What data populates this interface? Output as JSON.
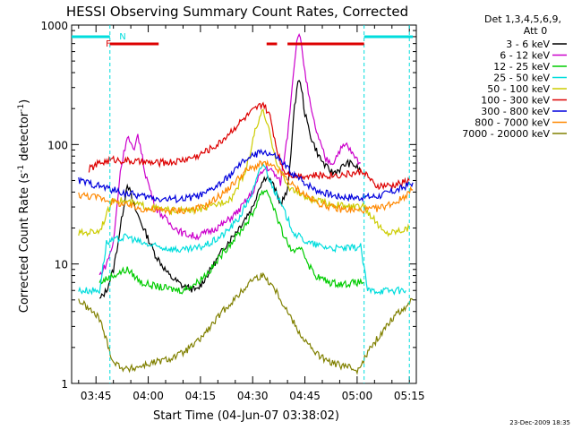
{
  "chart_data": {
    "type": "line",
    "title": "HESSI Observing Summary Count Rates, Corrected",
    "xlabel": "Start Time (04-Jun-07 03:38:02)",
    "ylabel_prefix": "Corrected Count Rate (s",
    "ylabel_sup1": "-1",
    "ylabel_mid": " detector",
    "ylabel_sup2": "-1",
    "ylabel_suffix": ")",
    "detector_line1": "Det 1,3,4,5,6,9,",
    "detector_line2": "Att 0",
    "footer_date": "23-Dec-2009 18:35",
    "xlim": [
      "03:38",
      "05:17"
    ],
    "ylim": [
      1,
      1000
    ],
    "yscale": "log",
    "x_ticks": [
      "03:45",
      "04:00",
      "04:15",
      "04:30",
      "04:45",
      "05:00",
      "05:15"
    ],
    "y_ticks": [
      {
        "value": 1,
        "label": "1"
      },
      {
        "value": 10,
        "label": "10"
      },
      {
        "value": 100,
        "label": "100"
      },
      {
        "value": 1000,
        "label": "1000"
      }
    ],
    "legend_position": "right",
    "data_gaps": [
      [
        "03:38",
        "03:49"
      ],
      [
        "05:02",
        "05:17"
      ]
    ],
    "series": [
      {
        "name": "3 - 6 keV",
        "color": "#000000",
        "points": [
          [
            "03:46",
            5
          ],
          [
            "03:48",
            6
          ],
          [
            "03:50",
            9
          ],
          [
            "03:52",
            20
          ],
          [
            "03:54",
            48
          ],
          [
            "03:56",
            30
          ],
          [
            "03:58",
            22
          ],
          [
            "04:02",
            12
          ],
          [
            "04:06",
            8
          ],
          [
            "04:10",
            6.5
          ],
          [
            "04:14",
            6
          ],
          [
            "04:18",
            9
          ],
          [
            "04:22",
            14
          ],
          [
            "04:26",
            20
          ],
          [
            "04:30",
            30
          ],
          [
            "04:32",
            45
          ],
          [
            "04:34",
            55
          ],
          [
            "04:36",
            45
          ],
          [
            "04:38",
            32
          ],
          [
            "04:40",
            40
          ],
          [
            "04:42",
            200
          ],
          [
            "04:43",
            350
          ],
          [
            "04:44",
            300
          ],
          [
            "04:45",
            180
          ],
          [
            "04:47",
            110
          ],
          [
            "04:49",
            80
          ],
          [
            "04:51",
            65
          ],
          [
            "04:53",
            58
          ],
          [
            "04:55",
            62
          ],
          [
            "04:57",
            70
          ],
          [
            "04:59",
            68
          ],
          [
            "05:01",
            60
          ]
        ]
      },
      {
        "name": "6 - 12 keV",
        "color": "#cc00cc",
        "points": [
          [
            "03:46",
            8
          ],
          [
            "03:48",
            10
          ],
          [
            "03:50",
            15
          ],
          [
            "03:52",
            60
          ],
          [
            "03:54",
            120
          ],
          [
            "03:56",
            85
          ],
          [
            "03:57",
            125
          ],
          [
            "03:59",
            60
          ],
          [
            "04:02",
            30
          ],
          [
            "04:06",
            22
          ],
          [
            "04:10",
            18
          ],
          [
            "04:14",
            17
          ],
          [
            "04:18",
            19
          ],
          [
            "04:22",
            22
          ],
          [
            "04:26",
            28
          ],
          [
            "04:30",
            40
          ],
          [
            "04:32",
            55
          ],
          [
            "04:34",
            65
          ],
          [
            "04:36",
            58
          ],
          [
            "04:38",
            48
          ],
          [
            "04:40",
            120
          ],
          [
            "04:42",
            500
          ],
          [
            "04:43",
            850
          ],
          [
            "04:44",
            700
          ],
          [
            "04:45",
            400
          ],
          [
            "04:47",
            180
          ],
          [
            "04:49",
            110
          ],
          [
            "04:51",
            75
          ],
          [
            "04:53",
            70
          ],
          [
            "04:55",
            90
          ],
          [
            "04:57",
            100
          ],
          [
            "04:59",
            80
          ],
          [
            "05:01",
            70
          ]
        ]
      },
      {
        "name": "12 - 25 keV",
        "color": "#00cc00",
        "points": [
          [
            "03:46",
            7
          ],
          [
            "03:50",
            8
          ],
          [
            "03:54",
            9
          ],
          [
            "03:58",
            7
          ],
          [
            "04:02",
            6.5
          ],
          [
            "04:06",
            6.2
          ],
          [
            "04:10",
            6
          ],
          [
            "04:14",
            7
          ],
          [
            "04:18",
            9
          ],
          [
            "04:22",
            13
          ],
          [
            "04:26",
            18
          ],
          [
            "04:30",
            26
          ],
          [
            "04:32",
            38
          ],
          [
            "04:34",
            42
          ],
          [
            "04:36",
            30
          ],
          [
            "04:38",
            20
          ],
          [
            "04:40",
            15
          ],
          [
            "04:42",
            12
          ],
          [
            "04:44",
            14
          ],
          [
            "04:46",
            10
          ],
          [
            "04:48",
            8
          ],
          [
            "04:52",
            7
          ],
          [
            "04:56",
            6.8
          ],
          [
            "05:00",
            7
          ],
          [
            "05:02",
            7
          ]
        ]
      },
      {
        "name": "25 - 50 keV",
        "color": "#00dddd",
        "points": [
          [
            "03:40",
            6
          ],
          [
            "03:46",
            6
          ],
          [
            "03:48",
            15
          ],
          [
            "03:54",
            17
          ],
          [
            "03:58",
            15
          ],
          [
            "04:02",
            14
          ],
          [
            "04:06",
            13.5
          ],
          [
            "04:10",
            13
          ],
          [
            "04:14",
            13.5
          ],
          [
            "04:18",
            15
          ],
          [
            "04:22",
            18
          ],
          [
            "04:26",
            24
          ],
          [
            "04:30",
            40
          ],
          [
            "04:32",
            60
          ],
          [
            "04:33",
            70
          ],
          [
            "04:35",
            50
          ],
          [
            "04:38",
            32
          ],
          [
            "04:40",
            24
          ],
          [
            "04:42",
            18
          ],
          [
            "04:46",
            15
          ],
          [
            "04:50",
            14
          ],
          [
            "04:54",
            13.5
          ],
          [
            "04:58",
            13.5
          ],
          [
            "05:01",
            14
          ],
          [
            "05:03",
            6
          ],
          [
            "05:14",
            6
          ]
        ]
      },
      {
        "name": "50 - 100 keV",
        "color": "#cccc00",
        "points": [
          [
            "03:40",
            18
          ],
          [
            "03:46",
            19
          ],
          [
            "03:50",
            35
          ],
          [
            "03:56",
            32
          ],
          [
            "04:00",
            30
          ],
          [
            "04:06",
            28
          ],
          [
            "04:12",
            28
          ],
          [
            "04:18",
            30
          ],
          [
            "04:24",
            36
          ],
          [
            "04:28",
            60
          ],
          [
            "04:31",
            140
          ],
          [
            "04:33",
            190
          ],
          [
            "04:35",
            120
          ],
          [
            "04:37",
            70
          ],
          [
            "04:40",
            45
          ],
          [
            "04:46",
            35
          ],
          [
            "04:52",
            32
          ],
          [
            "04:58",
            30
          ],
          [
            "05:02",
            30
          ],
          [
            "05:08",
            18
          ],
          [
            "05:15",
            20
          ]
        ]
      },
      {
        "name": "100 - 300 keV",
        "color": "#dd0000",
        "points": [
          [
            "03:43",
            62
          ],
          [
            "03:46",
            70
          ],
          [
            "03:50",
            75
          ],
          [
            "03:56",
            72
          ],
          [
            "04:02",
            70
          ],
          [
            "04:08",
            72
          ],
          [
            "04:14",
            80
          ],
          [
            "04:20",
            100
          ],
          [
            "04:26",
            150
          ],
          [
            "04:30",
            190
          ],
          [
            "04:33",
            220
          ],
          [
            "04:35",
            170
          ],
          [
            "04:37",
            90
          ],
          [
            "04:39",
            60
          ],
          [
            "04:42",
            55
          ],
          [
            "04:50",
            55
          ],
          [
            "04:56",
            56
          ],
          [
            "05:00",
            58
          ],
          [
            "05:02",
            60
          ],
          [
            "05:05",
            45
          ],
          [
            "05:10",
            45
          ],
          [
            "05:15",
            50
          ]
        ]
      },
      {
        "name": "300 - 800 keV",
        "color": "#0000dd",
        "points": [
          [
            "03:40",
            50
          ],
          [
            "03:46",
            45
          ],
          [
            "03:52",
            40
          ],
          [
            "03:58",
            37
          ],
          [
            "04:04",
            35
          ],
          [
            "04:10",
            35
          ],
          [
            "04:16",
            38
          ],
          [
            "04:22",
            50
          ],
          [
            "04:28",
            75
          ],
          [
            "04:33",
            88
          ],
          [
            "04:37",
            78
          ],
          [
            "04:42",
            55
          ],
          [
            "04:48",
            42
          ],
          [
            "04:54",
            37
          ],
          [
            "05:00",
            36
          ],
          [
            "05:06",
            37
          ],
          [
            "05:12",
            42
          ],
          [
            "05:16",
            48
          ]
        ]
      },
      {
        "name": "800 - 7000 keV",
        "color": "#ff8800",
        "points": [
          [
            "03:40",
            38
          ],
          [
            "03:46",
            36
          ],
          [
            "03:52",
            32
          ],
          [
            "03:58",
            29
          ],
          [
            "04:04",
            28
          ],
          [
            "04:10",
            28
          ],
          [
            "04:16",
            30
          ],
          [
            "04:22",
            40
          ],
          [
            "04:28",
            60
          ],
          [
            "04:33",
            70
          ],
          [
            "04:37",
            62
          ],
          [
            "04:42",
            44
          ],
          [
            "04:48",
            33
          ],
          [
            "04:54",
            29
          ],
          [
            "05:00",
            28
          ],
          [
            "05:06",
            29
          ],
          [
            "05:12",
            34
          ],
          [
            "05:16",
            42
          ]
        ]
      },
      {
        "name": "7000 - 20000 keV",
        "color": "#808000",
        "points": [
          [
            "03:40",
            5
          ],
          [
            "03:46",
            3.5
          ],
          [
            "03:50",
            1.5
          ],
          [
            "03:54",
            1.3
          ],
          [
            "03:58",
            1.4
          ],
          [
            "04:02",
            1.5
          ],
          [
            "04:06",
            1.6
          ],
          [
            "04:10",
            1.8
          ],
          [
            "04:14",
            2.2
          ],
          [
            "04:18",
            3
          ],
          [
            "04:22",
            4.2
          ],
          [
            "04:26",
            5.5
          ],
          [
            "04:30",
            7.5
          ],
          [
            "04:33",
            8
          ],
          [
            "04:36",
            6.5
          ],
          [
            "04:40",
            4
          ],
          [
            "04:44",
            2.5
          ],
          [
            "04:48",
            1.8
          ],
          [
            "04:52",
            1.5
          ],
          [
            "04:56",
            1.4
          ],
          [
            "05:00",
            1.3
          ],
          [
            "05:04",
            2
          ],
          [
            "05:10",
            3.5
          ],
          [
            "05:16",
            5
          ]
        ]
      }
    ],
    "flags": [
      {
        "label": "N",
        "color": "#00dddd",
        "segments": [
          [
            "03:38",
            "03:49"
          ],
          [
            "05:02",
            "05:16"
          ]
        ]
      },
      {
        "label": "F",
        "color": "#dd0000",
        "segments": [
          [
            "03:49",
            "04:03"
          ],
          [
            "04:34",
            "04:37"
          ],
          [
            "04:40",
            "05:02"
          ]
        ]
      }
    ],
    "night_boundaries": [
      "03:49",
      "05:02",
      "05:15"
    ]
  }
}
